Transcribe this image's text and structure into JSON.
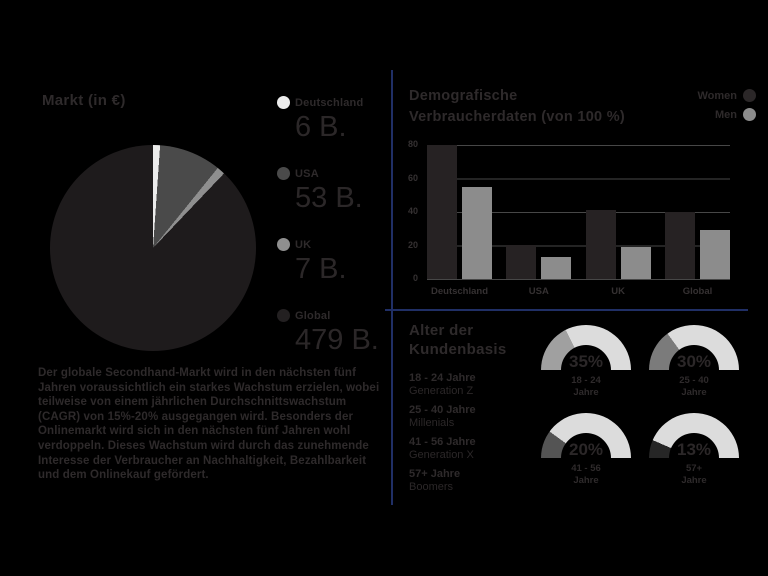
{
  "page": {
    "background": "#000000",
    "divider_color": "#202f66",
    "text_color": "#2e2a2b"
  },
  "market": {
    "title": "Markt (in €)",
    "legend": [
      {
        "label": "Deutschland",
        "value": "6 B.",
        "color": "#ececec"
      },
      {
        "label": "USA",
        "value": "53 B.",
        "color": "#4a4a4a"
      },
      {
        "label": "UK",
        "value": "7 B.",
        "color": "#8f8f8f"
      },
      {
        "label": "Global",
        "value": "479 B.",
        "color": "#232021"
      }
    ],
    "paragraph": "Der globale Secondhand-Markt wird in den nächsten fünf Jahren voraussichtlich ein starkes Wachstum erzielen, wobei teilweise von einem jährlichen Durchschnittswachstum (CAGR) von 15%-20% ausgegangen wird. Besonders der Onlinemarkt wird sich in den nächsten fünf Jahren wohl verdoppeln. Dieses Wachstum wird durch das zunehmende Interesse der Verbraucher an Nachhaltigkeit, Bezahlbarkeit und dem Onlinekauf gefördert."
  },
  "demographics": {
    "title_line1": "Demografische",
    "title_line2": "Verbraucherdaten (von 100 %)",
    "legend": [
      {
        "label": "Women",
        "color": "#2b2728"
      },
      {
        "label": "Men",
        "color": "#8c8c8c"
      }
    ]
  },
  "age": {
    "title_line1": "Alter der",
    "title_line2": "Kundenbasis",
    "track_color": "#dcdcdc",
    "groups": [
      {
        "range": "18 - 24 Jahre",
        "generation": "Generation Z",
        "pct": "35%",
        "gauge_label_line1": "18 - 24",
        "gauge_label_line2": "Jahre",
        "fill": "#a0a0a0"
      },
      {
        "range": "25 - 40 Jahre",
        "generation": "Millenials",
        "pct": "30%",
        "gauge_label_line1": "25 - 40",
        "gauge_label_line2": "Jahre",
        "fill": "#7b7b7b"
      },
      {
        "range": "41 - 56 Jahre",
        "generation": "Generation X",
        "pct": "20%",
        "gauge_label_line1": "41 - 56",
        "gauge_label_line2": "Jahre",
        "fill": "#545454"
      },
      {
        "range": "57+ Jahre",
        "generation": "Boomers",
        "pct": "13%",
        "gauge_label_line1": "57+",
        "gauge_label_line2": "Jahre",
        "fill": "#262626"
      }
    ]
  },
  "chart_data": [
    {
      "type": "pie",
      "title": "Markt (in €)",
      "labels": [
        "Deutschland",
        "USA",
        "UK",
        "Global"
      ],
      "values": [
        6,
        53,
        7,
        479
      ],
      "display_values": [
        "6 B.",
        "53 B.",
        "7 B.",
        "479 B."
      ],
      "unit": "B. €",
      "colors": [
        "#ececec",
        "#4a4a4a",
        "#8f8f8f",
        "#1e1b1c"
      ],
      "start_angle_deg": 0,
      "legend_position": "right"
    },
    {
      "type": "bar",
      "title": "Demografische Verbraucherdaten (von 100 %)",
      "categories": [
        "Deutschland",
        "USA",
        "UK",
        "Global"
      ],
      "series": [
        {
          "name": "Women",
          "color": "#262223",
          "values": [
            80,
            20,
            41,
            40
          ]
        },
        {
          "name": "Men",
          "color": "#8c8c8c",
          "values": [
            55,
            13,
            19,
            29
          ]
        }
      ],
      "ylim": [
        0,
        80
      ],
      "yticks": [
        0,
        20,
        40,
        60,
        80
      ],
      "grid": true,
      "legend_position": "top-right"
    },
    {
      "type": "gauge",
      "title": "Alter der Kundenbasis",
      "track_color": "#dcdcdc",
      "items": [
        {
          "label": "18 - 24 Jahre",
          "sublabel": "Generation Z",
          "value_pct": 35,
          "fill": "#a0a0a0"
        },
        {
          "label": "25 - 40 Jahre",
          "sublabel": "Millenials",
          "value_pct": 30,
          "fill": "#7b7b7b"
        },
        {
          "label": "41 - 56 Jahre",
          "sublabel": "Generation X",
          "value_pct": 20,
          "fill": "#545454"
        },
        {
          "label": "57+ Jahre",
          "sublabel": "Boomers",
          "value_pct": 13,
          "fill": "#262626"
        }
      ]
    }
  ]
}
